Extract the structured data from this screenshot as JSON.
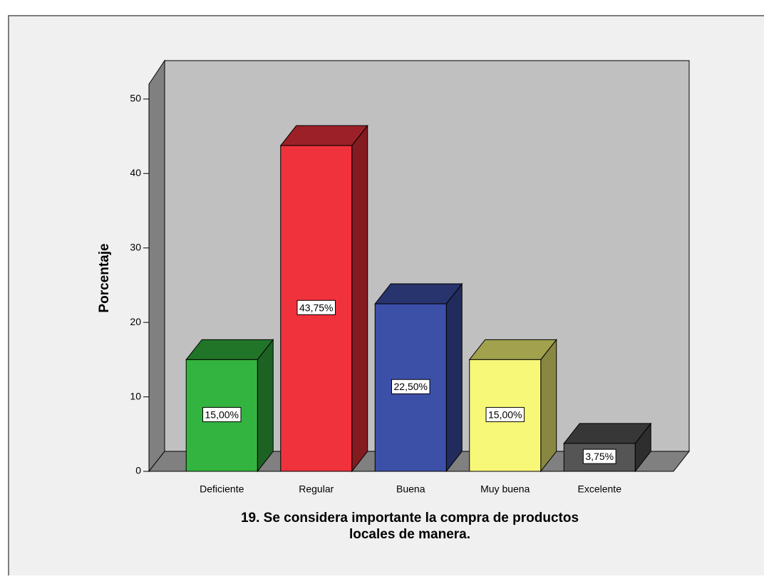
{
  "chart_data": {
    "type": "bar3d",
    "y_label": "Porcentaje",
    "x_label": [
      "19. Se considera importante la compra de productos",
      "locales de manera."
    ],
    "categories": [
      "Deficiente",
      "Regular",
      "Buena",
      "Muy buena",
      "Excelente"
    ],
    "values": [
      15,
      43.75,
      22.5,
      15,
      3.75
    ],
    "value_labels": [
      "15,00%",
      "43,75%",
      "22,50%",
      "15,00%",
      "3,75%"
    ],
    "colors": [
      "#33b440",
      "#f0323c",
      "#3c50a8",
      "#f8f878",
      "#555555"
    ],
    "ylim": [
      0,
      52
    ],
    "yticks": [
      0,
      10,
      20,
      30,
      40,
      50
    ]
  }
}
